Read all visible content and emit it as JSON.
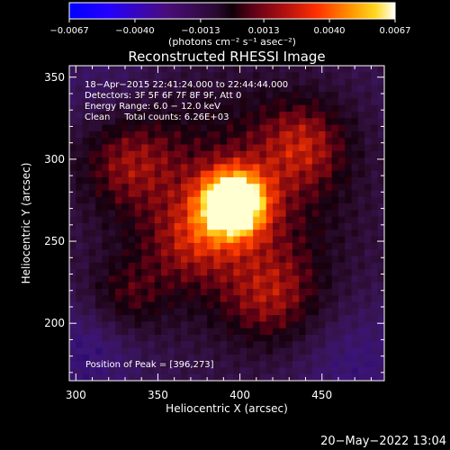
{
  "chart_data": {
    "type": "heatmap",
    "title": "Reconstructed RHESSI Image",
    "xlabel": "Heliocentric X (arcsec)",
    "ylabel": "Heliocentric Y (arcsec)",
    "xlim": [
      296,
      488
    ],
    "ylim": [
      165,
      357
    ],
    "xticks": [
      300,
      350,
      400,
      450
    ],
    "yticks": [
      200,
      250,
      300,
      350
    ],
    "colorbar": {
      "range": [
        -0.0067,
        0.0067
      ],
      "ticks": [
        -0.0067,
        -0.004,
        -0.0013,
        0.0013,
        0.004,
        0.0067
      ],
      "tick_labels": [
        "−0.0067",
        "−0.0040",
        "−0.0013",
        "0.0013",
        "0.0040",
        "0.0067"
      ],
      "units_label": "(photons cm⁻² s⁻¹ asec⁻²)"
    },
    "annotations": [
      "18−Apr−2015 22:41:24.000 to 22:44:44.000",
      "Detectors: 3F 5F 6F 7F 8F 9F, Att 0",
      "Energy Range: 6.0 − 12.0 keV",
      "Clean     Total counts: 6.26E+03"
    ],
    "peak_text": "Position of Peak = [396,273]",
    "peak": [
      396,
      273
    ],
    "grid": false,
    "colors": {
      "background": "#000000",
      "text": "#ffffff"
    }
  },
  "footer": {
    "timestamp": "20−May−2022 13:04"
  }
}
